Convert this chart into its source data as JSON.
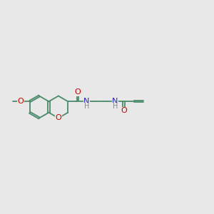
{
  "bg_color": "#e8e8e8",
  "bond_color": "#4a8a6a",
  "O_color": "#cc0000",
  "N_color": "#2222bb",
  "H_color": "#888888",
  "bond_lw": 1.3,
  "dbo": 0.045,
  "fs": 8.0,
  "fsh": 7.0,
  "figsize": [
    3.0,
    3.0
  ],
  "dpi": 100,
  "xlim": [
    0,
    12
  ],
  "ylim": [
    2,
    8
  ]
}
